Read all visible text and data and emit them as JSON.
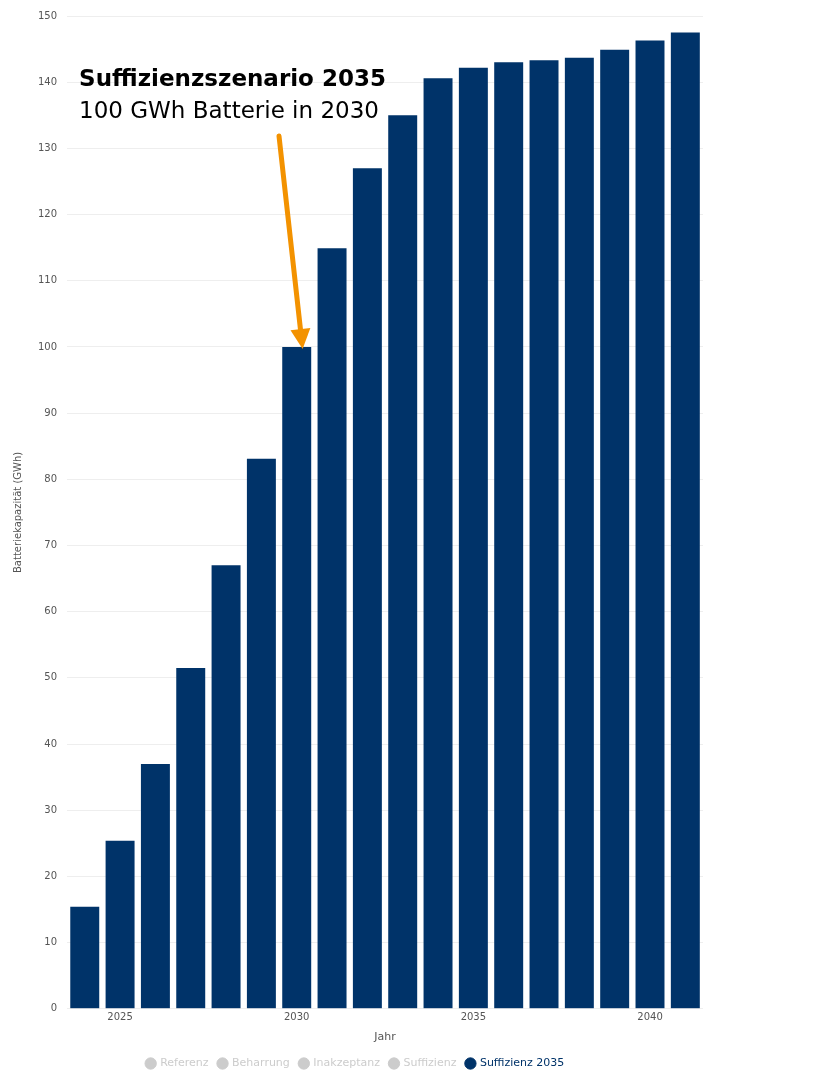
{
  "chart_data": {
    "type": "bar",
    "categories": [
      null,
      "2025",
      null,
      null,
      null,
      null,
      "2030",
      null,
      null,
      null,
      null,
      "2035",
      null,
      null,
      null,
      null,
      "2040",
      null
    ],
    "series": [
      {
        "name": "Referenz",
        "color": "#cccccc",
        "values": [
          null,
          null,
          null,
          null,
          null,
          null,
          null,
          null,
          null,
          null,
          null,
          null,
          null,
          null,
          null,
          null,
          null,
          null
        ]
      },
      {
        "name": "Beharrung",
        "color": "#cccccc",
        "values": [
          null,
          null,
          null,
          null,
          null,
          null,
          null,
          null,
          null,
          null,
          null,
          null,
          null,
          null,
          null,
          null,
          null,
          null
        ]
      },
      {
        "name": "Inakzeptanz",
        "color": "#cccccc",
        "values": [
          null,
          null,
          null,
          null,
          null,
          null,
          null,
          null,
          null,
          null,
          null,
          null,
          null,
          null,
          null,
          null,
          null,
          null
        ]
      },
      {
        "name": "Suffizienz",
        "color": "#cccccc",
        "values": [
          null,
          null,
          null,
          null,
          null,
          null,
          null,
          null,
          null,
          null,
          null,
          null,
          null,
          null,
          null,
          null,
          null,
          null
        ]
      },
      {
        "name": "Suffizienz 2035",
        "color": "#003369",
        "values": [
          15.4,
          25.4,
          37,
          51.5,
          67,
          83.1,
          100,
          114.9,
          127,
          135,
          140.6,
          142.2,
          143,
          143.3,
          143.7,
          144.9,
          146.3,
          147.5
        ]
      }
    ],
    "xlabel": "Jahr",
    "ylabel": "Batteriekapazität (GWh)",
    "ylim": [
      0,
      150
    ],
    "yticks": [
      0,
      10,
      20,
      30,
      40,
      50,
      60,
      70,
      80,
      90,
      100,
      110,
      120,
      130,
      140,
      150
    ],
    "grid": "y",
    "legend": "bottom",
    "annotations": [
      "Suffizienzszenario 2035",
      "100 GWh Batterie in 2030"
    ]
  }
}
